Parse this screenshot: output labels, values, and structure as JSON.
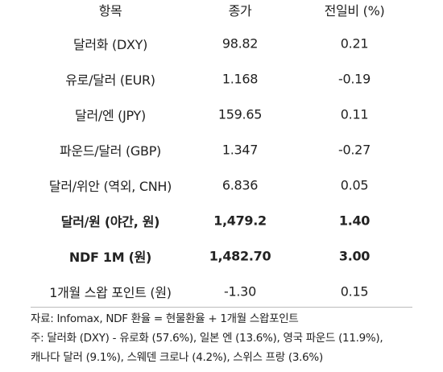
{
  "table": {
    "header": [
      "항목",
      "종가",
      "전일비 (%)"
    ],
    "rows": [
      [
        "달러화 (DXY)",
        "98.82",
        "0.21"
      ],
      [
        "유로/달러 (EUR)",
        "1.168",
        "-0.19"
      ],
      [
        "달러/엔 (JPY)",
        "159.65",
        "0.11"
      ],
      [
        "파운드/달러 (GBP)",
        "1.347",
        "-0.27"
      ],
      [
        "달러/위안 (역외, CNH)",
        "6.836",
        "0.05"
      ],
      [
        "달러/원 (야간, 원)",
        "1,479.2",
        "1.40"
      ],
      [
        "NDF 1M (원)",
        "1,482.70",
        "3.00"
      ],
      [
        "1개월 스왑 포인트 (원)",
        "-1.30",
        "0.15"
      ]
    ]
  },
  "notes": [
    "자료: Infomax, NDF 환율 = 현물환율 + 1개월 스왑포인트",
    "주: 달러화 (DXY) - 유로화 (57.6%), 일본 엔 (13.6%), 영국 파운드 (11.9%),",
    "캐나다 달러 (9.1%), 스웨덴 크로나 (4.2%), 스위스 프랑 (3.6%)"
  ]
}
